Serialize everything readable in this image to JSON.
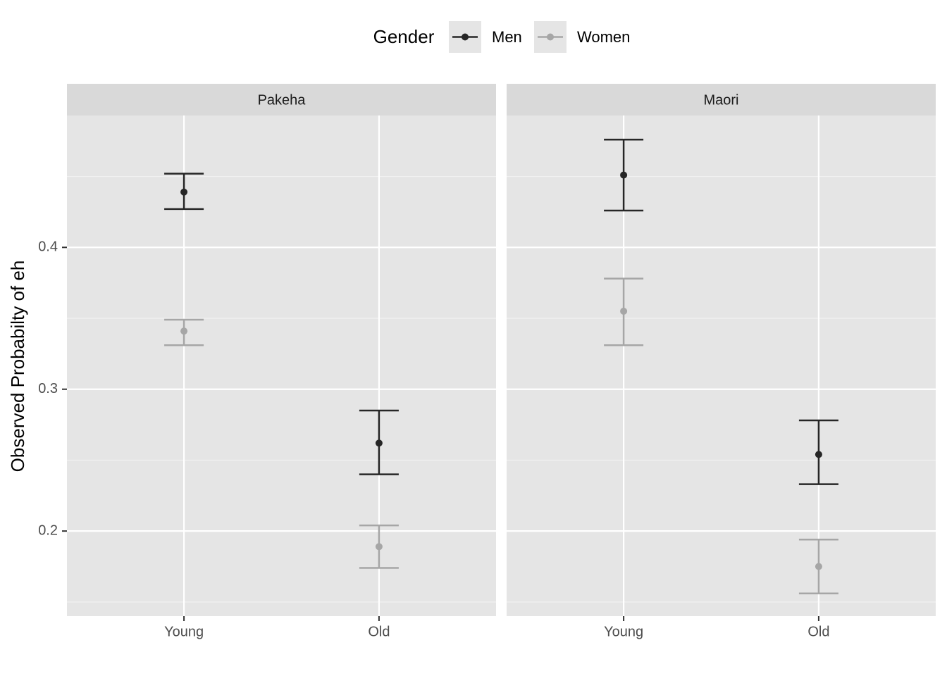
{
  "chart_data": {
    "type": "errorbar",
    "y_label": "Observed Probabilty of eh",
    "legend_title": "Gender",
    "facets": [
      "Pakeha",
      "Maori"
    ],
    "categories": [
      "Young",
      "Old"
    ],
    "series": [
      {
        "name": "Men",
        "color": "#262626",
        "values": [
          [
            0.439,
            0.262
          ],
          [
            0.451,
            0.254
          ]
        ],
        "lower": [
          [
            0.427,
            0.24
          ],
          [
            0.426,
            0.233
          ]
        ],
        "upper": [
          [
            0.452,
            0.285
          ],
          [
            0.476,
            0.278
          ]
        ]
      },
      {
        "name": "Women",
        "color": "#a6a6a6",
        "values": [
          [
            0.341,
            0.189
          ],
          [
            0.355,
            0.175
          ]
        ],
        "lower": [
          [
            0.331,
            0.174
          ],
          [
            0.331,
            0.156
          ]
        ],
        "upper": [
          [
            0.349,
            0.204
          ],
          [
            0.378,
            0.194
          ]
        ]
      }
    ],
    "ylim": [
      0.14,
      0.493
    ],
    "yticks": [
      0.2,
      0.3,
      0.4
    ],
    "minor_yticks": [
      0.15,
      0.25,
      0.35,
      0.45
    ],
    "grid": true
  }
}
